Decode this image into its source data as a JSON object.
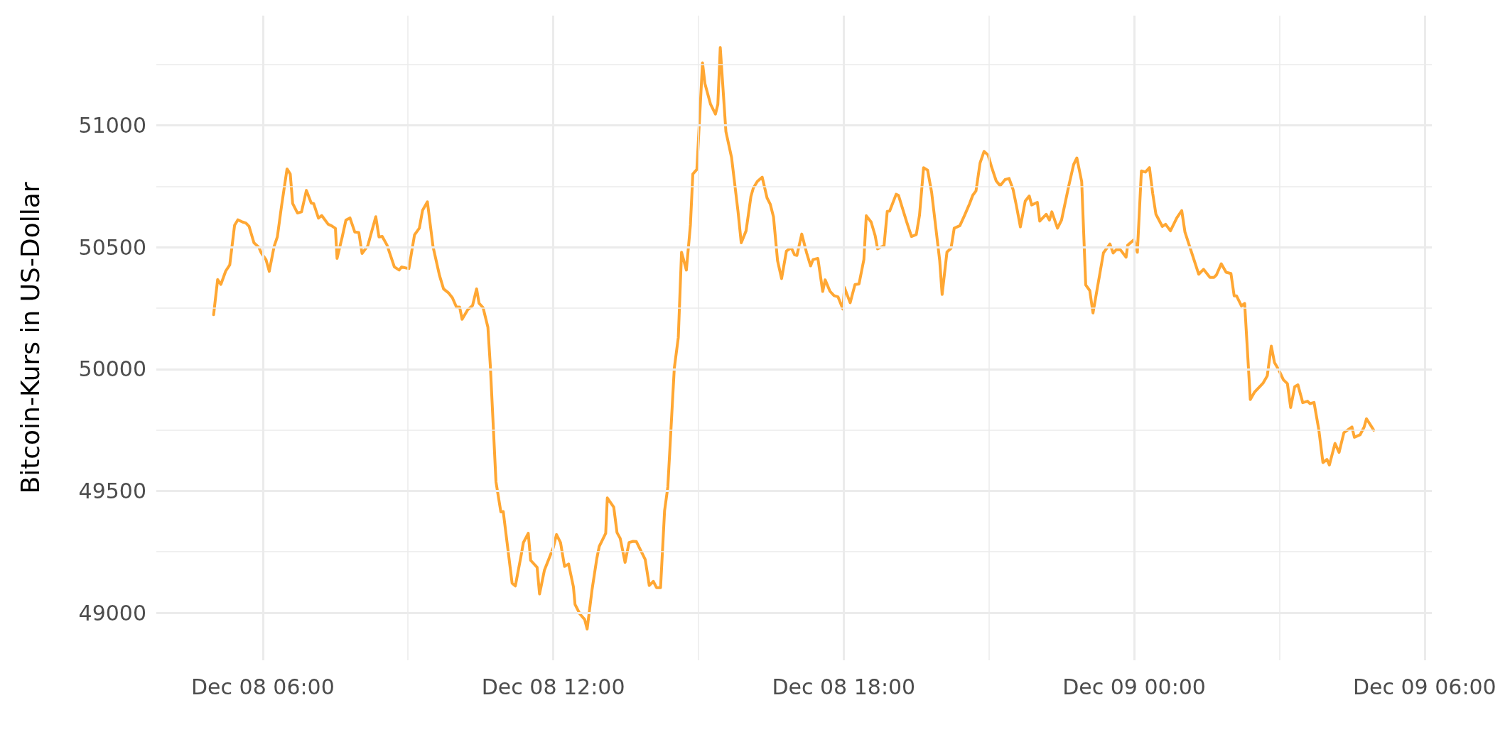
{
  "chart_data": {
    "type": "line",
    "ylabel": "Bitcoin-Kurs in US-Dollar",
    "grid": true,
    "marker": "none",
    "xlim": [
      "--12-08T03:48",
      "--12-09T06:09"
    ],
    "xticks": [
      {
        "value": "--12-08T06:00",
        "label": "Dec 08 06:00"
      },
      {
        "value": "--12-08T09:00",
        "label": null
      },
      {
        "value": "--12-08T12:00",
        "label": "Dec 08 12:00"
      },
      {
        "value": "--12-08T15:00",
        "label": null
      },
      {
        "value": "--12-08T18:00",
        "label": "Dec 08 18:00"
      },
      {
        "value": "--12-08T21:00",
        "label": null
      },
      {
        "value": "--12-09T00:00",
        "label": "Dec 09 00:00"
      },
      {
        "value": "--12-09T03:00",
        "label": null
      },
      {
        "value": "--12-09T06:00",
        "label": "Dec 09 06:00"
      }
    ],
    "ylim": [
      48805,
      51450
    ],
    "yticks": [
      49000,
      {
        "value": 49250,
        "label": null
      },
      49500,
      {
        "value": 49750,
        "label": null
      },
      50000,
      {
        "value": 50250,
        "label": null
      },
      50500,
      {
        "value": 50750,
        "label": null
      },
      51000,
      {
        "value": 51250,
        "label": null
      }
    ],
    "series": [
      {
        "color": "#ffa733",
        "x": [
          "--12-08T04:59",
          "--12-08T05:04",
          "--12-08T05:08",
          "--12-08T05:14",
          "--12-08T05:19",
          "--12-08T05:25",
          "--12-08T05:29",
          "--12-08T05:35",
          "--12-08T05:39",
          "--12-08T05:43",
          "--12-08T05:49",
          "--12-08T05:55",
          "--12-08T05:58",
          "--12-08T06:04",
          "--12-08T06:08",
          "--12-08T06:14",
          "--12-08T06:18",
          "--12-08T06:23",
          "--12-08T06:30",
          "--12-08T06:34",
          "--12-08T06:37",
          "--12-08T06:43",
          "--12-08T06:48",
          "--12-08T06:54",
          "--12-08T07:00",
          "--12-08T07:03",
          "--12-08T07:09",
          "--12-08T07:13",
          "--12-08T07:21",
          "--12-08T07:25",
          "--12-08T07:30",
          "--12-08T07:32",
          "--12-08T07:38",
          "--12-08T07:43",
          "--12-08T07:48",
          "--12-08T07:54",
          "--12-08T07:59",
          "--12-08T08:03",
          "--12-08T08:10",
          "--12-08T08:20",
          "--12-08T08:24",
          "--12-08T08:28",
          "--12-08T08:34",
          "--12-08T08:43",
          "--12-08T08:49",
          "--12-08T08:52",
          "--12-08T09:01",
          "--12-08T09:08",
          "--12-08T09:14",
          "--12-08T09:18",
          "--12-08T09:24",
          "--12-08T09:31",
          "--12-08T09:39",
          "--12-08T09:44",
          "--12-08T09:50",
          "--12-08T09:55",
          "--12-08T10:00",
          "--12-08T10:04",
          "--12-08T10:07",
          "--12-08T10:14",
          "--12-08T10:20",
          "--12-08T10:25",
          "--12-08T10:28",
          "--12-08T10:33",
          "--12-08T10:39",
          "--12-08T10:42",
          "--12-08T10:49",
          "--12-08T10:55",
          "--12-08T10:58",
          "--12-08T11:09",
          "--12-08T11:13",
          "--12-08T11:20",
          "--12-08T11:23",
          "--12-08T11:29",
          "--12-08T11:32",
          "--12-08T11:40",
          "--12-08T11:43",
          "--12-08T11:49",
          "--12-08T12:00",
          "--12-08T12:04",
          "--12-08T12:09",
          "--12-08T12:14",
          "--12-08T12:19",
          "--12-08T12:25",
          "--12-08T12:27",
          "--12-08T12:33",
          "--12-08T12:39",
          "--12-08T12:42",
          "--12-08T12:48",
          "--12-08T12:54",
          "--12-08T12:57",
          "--12-08T13:05",
          "--12-08T13:07",
          "--12-08T13:15",
          "--12-08T13:19",
          "--12-08T13:23",
          "--12-08T13:29",
          "--12-08T13:34",
          "--12-08T13:39",
          "--12-08T13:43",
          "--12-08T13:54",
          "--12-08T13:59",
          "--12-08T14:04",
          "--12-08T14:08",
          "--12-08T14:13",
          "--12-08T14:18",
          "--12-08T14:22",
          "--12-08T14:30",
          "--12-08T14:35",
          "--12-08T14:39",
          "--12-08T14:45",
          "--12-08T14:50",
          "--12-08T14:53",
          "--12-08T14:58",
          "--12-08T15:05",
          "--12-08T15:08",
          "--12-08T15:15",
          "--12-08T15:21",
          "--12-08T15:24",
          "--12-08T15:27",
          "--12-08T15:34",
          "--12-08T15:41",
          "--12-08T15:49",
          "--12-08T15:53",
          "--12-08T15:59",
          "--12-08T16:05",
          "--12-08T16:08",
          "--12-08T16:13",
          "--12-08T16:19",
          "--12-08T16:25",
          "--12-08T16:29",
          "--12-08T16:33",
          "--12-08T16:38",
          "--12-08T16:43",
          "--12-08T16:49",
          "--12-08T16:55",
          "--12-08T16:59",
          "--12-08T17:02",
          "--12-08T17:08",
          "--12-08T17:14",
          "--12-08T17:19",
          "--12-08T17:22",
          "--12-08T17:28",
          "--12-08T17:34",
          "--12-08T17:37",
          "--12-08T17:43",
          "--12-08T17:48",
          "--12-08T17:53",
          "--12-08T17:59",
          "--12-08T18:01",
          "--12-08T18:08",
          "--12-08T18:14",
          "--12-08T18:19",
          "--12-08T18:25",
          "--12-08T18:28",
          "--12-08T18:34",
          "--12-08T18:39",
          "--12-08T18:42",
          "--12-08T18:50",
          "--12-08T18:54",
          "--12-08T18:57",
          "--12-08T19:05",
          "--12-08T19:08",
          "--12-08T19:18",
          "--12-08T19:24",
          "--12-08T19:30",
          "--12-08T19:34",
          "--12-08T19:39",
          "--12-08T19:44",
          "--12-08T19:49",
          "--12-08T19:59",
          "--12-08T20:02",
          "--12-08T20:08",
          "--12-08T20:13",
          "--12-08T20:17",
          "--12-08T20:24",
          "--12-08T20:30",
          "--12-08T20:36",
          "--12-08T20:40",
          "--12-08T20:44",
          "--12-08T20:49",
          "--12-08T20:54",
          "--12-08T20:59",
          "--12-08T21:03",
          "--12-08T21:09",
          "--12-08T21:14",
          "--12-08T21:20",
          "--12-08T21:25",
          "--12-08T21:30",
          "--12-08T21:34",
          "--12-08T21:39",
          "--12-08T21:45",
          "--12-08T21:50",
          "--12-08T21:53",
          "--12-08T22:00",
          "--12-08T22:03",
          "--12-08T22:11",
          "--12-08T22:15",
          "--12-08T22:18",
          "--12-08T22:25",
          "--12-08T22:30",
          "--12-08T22:39",
          "--12-08T22:45",
          "--12-08T22:49",
          "--12-08T22:55",
          "--12-08T23:00",
          "--12-08T23:05",
          "--12-08T23:09",
          "--12-08T23:22",
          "--12-08T23:30",
          "--12-08T23:34",
          "--12-08T23:38",
          "--12-08T23:43",
          "--12-08T23:50",
          "--12-08T23:52",
          "--12-09T00:00",
          "--12-09T00:04",
          "--12-09T00:09",
          "--12-09T00:14",
          "--12-09T00:19",
          "--12-09T00:23",
          "--12-09T00:27",
          "--12-09T00:35",
          "--12-09T00:39",
          "--12-09T00:45",
          "--12-09T00:53",
          "--12-09T00:59",
          "--12-09T01:03",
          "--12-09T01:20",
          "--12-09T01:26",
          "--12-09T01:34",
          "--12-09T01:39",
          "--12-09T01:42",
          "--12-09T01:48",
          "--12-09T01:54",
          "--12-09T02:00",
          "--12-09T02:04",
          "--12-09T02:07",
          "--12-09T02:13",
          "--12-09T02:17",
          "--12-09T02:24",
          "--12-09T02:29",
          "--12-09T02:40",
          "--12-09T02:45",
          "--12-09T02:50",
          "--12-09T02:54",
          "--12-09T02:59",
          "--12-09T03:05",
          "--12-09T03:10",
          "--12-09T03:14",
          "--12-09T03:19",
          "--12-09T03:23",
          "--12-09T03:29",
          "--12-09T03:35",
          "--12-09T03:38",
          "--12-09T03:43",
          "--12-09T03:49",
          "--12-09T03:54",
          "--12-09T03:59",
          "--12-09T04:02",
          "--12-09T04:09",
          "--12-09T04:14",
          "--12-09T04:20",
          "--12-09T04:30",
          "--12-09T04:33",
          "--12-09T04:40",
          "--12-09T04:45",
          "--12-09T04:48",
          "--12-09T04:57"
        ],
        "values": [
          50223,
          50367,
          50347,
          50402,
          50427,
          50590,
          50612,
          50603,
          50599,
          50585,
          50518,
          50500,
          50477,
          50448,
          50401,
          50503,
          50542,
          50664,
          50821,
          50800,
          50679,
          50640,
          50645,
          50733,
          50681,
          50679,
          50619,
          50630,
          50594,
          50588,
          50577,
          50454,
          50536,
          50611,
          50620,
          50562,
          50560,
          50474,
          50505,
          50625,
          50542,
          50544,
          50508,
          50419,
          50406,
          50419,
          50412,
          50550,
          50578,
          50651,
          50686,
          50502,
          50384,
          50329,
          50313,
          50292,
          50254,
          50254,
          50204,
          50243,
          50261,
          50329,
          50270,
          50252,
          50171,
          50013,
          49537,
          49414,
          49415,
          49121,
          49110,
          49232,
          49288,
          49326,
          49215,
          49186,
          49077,
          49174,
          49267,
          49321,
          49288,
          49190,
          49200,
          49106,
          49034,
          48995,
          48972,
          48933,
          49093,
          49223,
          49272,
          49326,
          49471,
          49433,
          49329,
          49305,
          49207,
          49288,
          49293,
          49292,
          49218,
          49112,
          49129,
          49103,
          49103,
          49419,
          49516,
          50002,
          50130,
          50479,
          50406,
          50591,
          50800,
          50819,
          51256,
          51171,
          51086,
          51046,
          51086,
          51319,
          50974,
          50868,
          50647,
          50518,
          50567,
          50708,
          50743,
          50770,
          50787,
          50702,
          50676,
          50624,
          50445,
          50371,
          50484,
          50498,
          50469,
          50466,
          50554,
          50477,
          50423,
          50449,
          50454,
          50318,
          50366,
          50319,
          50301,
          50296,
          50246,
          50334,
          50272,
          50347,
          50349,
          50449,
          50629,
          50603,
          50547,
          50493,
          50506,
          50647,
          50648,
          50717,
          50712,
          50604,
          50544,
          50552,
          50632,
          50826,
          50816,
          50725,
          50445,
          50306,
          50480,
          50495,
          50578,
          50588,
          50632,
          50678,
          50713,
          50731,
          50845,
          50893,
          50878,
          50832,
          50772,
          50752,
          50777,
          50782,
          50736,
          50671,
          50583,
          50689,
          50710,
          50673,
          50684,
          50607,
          50635,
          50611,
          50645,
          50578,
          50611,
          50752,
          50839,
          50866,
          50769,
          50345,
          50322,
          50230,
          50477,
          50513,
          50476,
          50490,
          50489,
          50459,
          50508,
          50531,
          50479,
          50813,
          50808,
          50826,
          50721,
          50635,
          50585,
          50594,
          50567,
          50621,
          50650,
          50562,
          50389,
          50409,
          50376,
          50376,
          50386,
          50432,
          50397,
          50392,
          50300,
          50300,
          50259,
          50269,
          49875,
          49904,
          49943,
          49972,
          50094,
          50026,
          49998,
          49956,
          49940,
          49842,
          49927,
          49935,
          49862,
          49868,
          49858,
          49863,
          49749,
          49616,
          49629,
          49606,
          49695,
          49658,
          49739,
          49762,
          49720,
          49730,
          49761,
          49796,
          49749
        ]
      }
    ]
  }
}
